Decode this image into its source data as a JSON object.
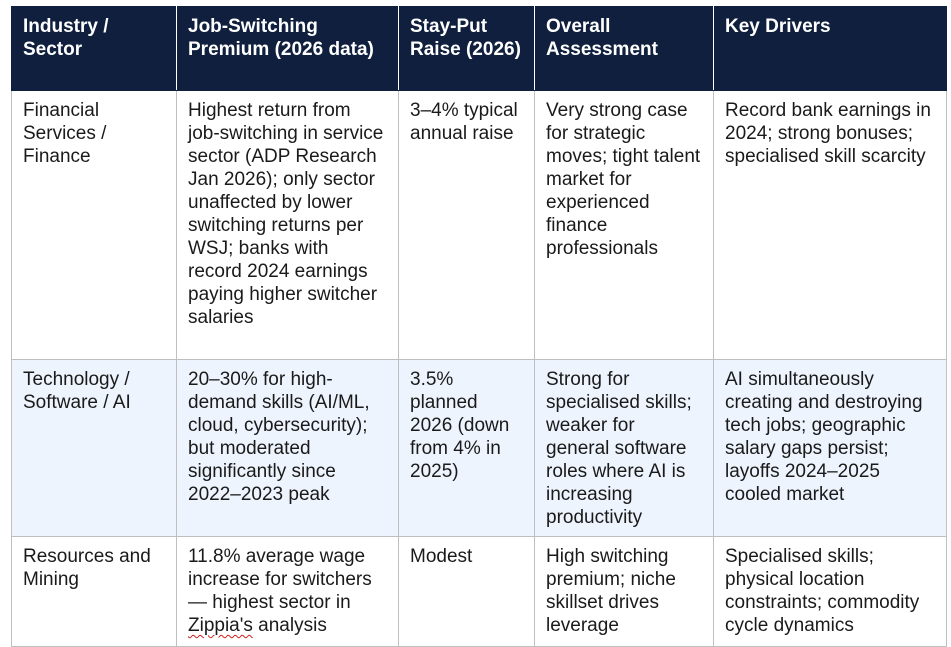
{
  "table": {
    "headers": [
      "Industry / Sector",
      "Job-Switching Premium (2026 data)",
      "Stay-Put Raise (2026)",
      "Overall Assessment",
      "Key Drivers"
    ],
    "rows": [
      [
        "Financial Services / Finance",
        "Highest return from job-switching in service sector (ADP Research Jan 2026); only sector unaffected by lower switching returns per WSJ; banks with record 2024 earnings paying higher switcher salaries",
        "3–4% typical annual raise",
        "Very strong case for strategic moves; tight talent market for experienced finance professionals",
        "Record bank earnings in 2024; strong bonuses; specialised skill scarcity"
      ],
      [
        "Technology / Software / AI",
        "20–30% for high-demand skills (AI/ML, cloud, cybersecurity); but moderated significantly since 2022–2023 peak",
        "3.5% planned 2026 (down from 4% in 2025)",
        "Strong for specialised skills; weaker for general software roles where AI is increasing productivity",
        "AI simultaneously creating and destroying tech jobs; geographic salary gaps persist; layoffs 2024–2025 cooled market"
      ],
      [
        "Resources and Mining",
        "11.8% average wage increase for switchers — highest sector in Zippia's analysis",
        "Modest",
        "High switching premium; niche skillset drives leverage",
        "Specialised skills; physical location constraints; commodity cycle dynamics"
      ]
    ]
  }
}
